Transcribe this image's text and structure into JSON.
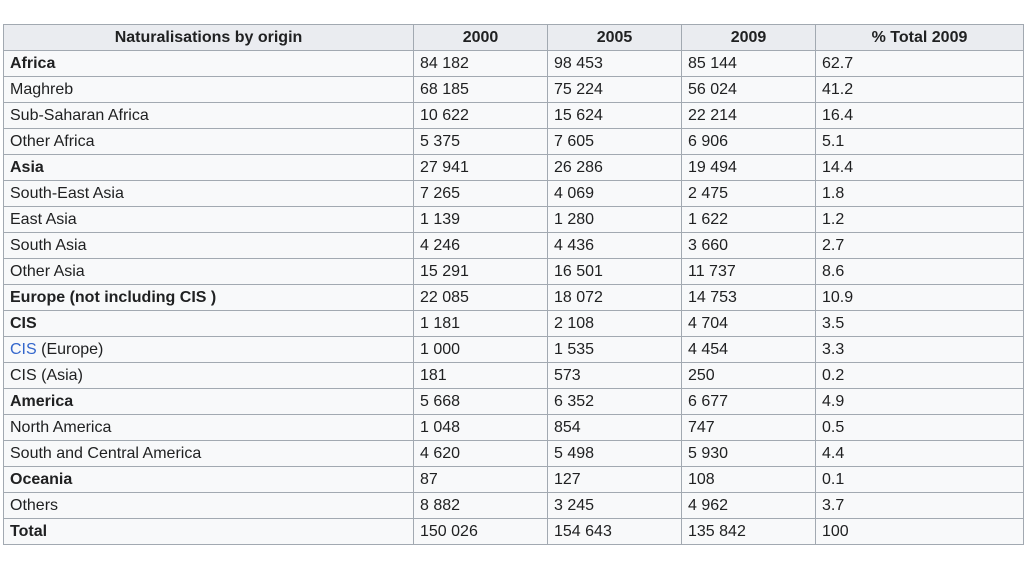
{
  "table": {
    "headers": [
      "Naturalisations by origin",
      "2000",
      "2005",
      "2009",
      "% Total 2009"
    ],
    "rows": [
      {
        "origin": "Africa",
        "bold": true,
        "y2000": "84 182",
        "y2005": "98 453",
        "y2009": "85 144",
        "pct": "62.7"
      },
      {
        "origin": "Maghreb",
        "bold": false,
        "y2000": "68 185",
        "y2005": "75 224",
        "y2009": "56 024",
        "pct": "41.2"
      },
      {
        "origin": "Sub-Saharan Africa",
        "bold": false,
        "y2000": "10 622",
        "y2005": "15 624",
        "y2009": "22 214",
        "pct": "16.4"
      },
      {
        "origin": "Other Africa",
        "bold": false,
        "y2000": "5 375",
        "y2005": "7 605",
        "y2009": "6 906",
        "pct": "5.1"
      },
      {
        "origin": "Asia",
        "bold": true,
        "y2000": "27 941",
        "y2005": "26 286",
        "y2009": "19 494",
        "pct": "14.4"
      },
      {
        "origin": "South-East Asia",
        "bold": false,
        "y2000": "7 265",
        "y2005": "4 069",
        "y2009": "2 475",
        "pct": "1.8"
      },
      {
        "origin": "East Asia",
        "bold": false,
        "y2000": "1 139",
        "y2005": "1 280",
        "y2009": "1 622",
        "pct": "1.2"
      },
      {
        "origin": "South Asia",
        "bold": false,
        "y2000": "4 246",
        "y2005": "4 436",
        "y2009": "3 660",
        "pct": "2.7"
      },
      {
        "origin": "Other Asia",
        "bold": false,
        "y2000": "15 291",
        "y2005": "16 501",
        "y2009": "11 737",
        "pct": "8.6"
      },
      {
        "origin": "Europe (not including CIS )",
        "bold": true,
        "y2000": "22 085",
        "y2005": "18 072",
        "y2009": "14 753",
        "pct": "10.9"
      },
      {
        "origin": "CIS",
        "bold": true,
        "y2000": "1 181",
        "y2005": "2 108",
        "y2009": "4 704",
        "pct": "3.5"
      },
      {
        "origin": "CIS",
        "origin_suffix": " (Europe)",
        "link": true,
        "bold": false,
        "y2000": "1 000",
        "y2005": "1 535",
        "y2009": "4 454",
        "pct": "3.3"
      },
      {
        "origin": "CIS (Asia)",
        "bold": false,
        "y2000": "181",
        "y2005": "573",
        "y2009": "250",
        "pct": "0.2"
      },
      {
        "origin": "America",
        "bold": true,
        "y2000": "5 668",
        "y2005": "6 352",
        "y2009": "6 677",
        "pct": "4.9"
      },
      {
        "origin": "North America",
        "bold": false,
        "y2000": "1 048",
        "y2005": "854",
        "y2009": "747",
        "pct": "0.5"
      },
      {
        "origin": "South and Central America",
        "bold": false,
        "y2000": "4 620",
        "y2005": "5 498",
        "y2009": "5 930",
        "pct": "4.4"
      },
      {
        "origin": "Oceania",
        "bold": true,
        "y2000": "87",
        "y2005": "127",
        "y2009": "108",
        "pct": "0.1"
      },
      {
        "origin": "Others",
        "bold": false,
        "y2000": "8 882",
        "y2005": "3 245",
        "y2009": "4 962",
        "pct": "3.7"
      },
      {
        "origin": "Total",
        "bold": true,
        "y2000": "150 026",
        "y2005": "154 643",
        "y2009": "135 842",
        "pct": "100"
      }
    ]
  },
  "colors": {
    "link": "#3366cc",
    "header_bg": "#eaecf0",
    "cell_bg": "#f8f9fa",
    "border": "#a2a9b1",
    "text": "#202122"
  }
}
